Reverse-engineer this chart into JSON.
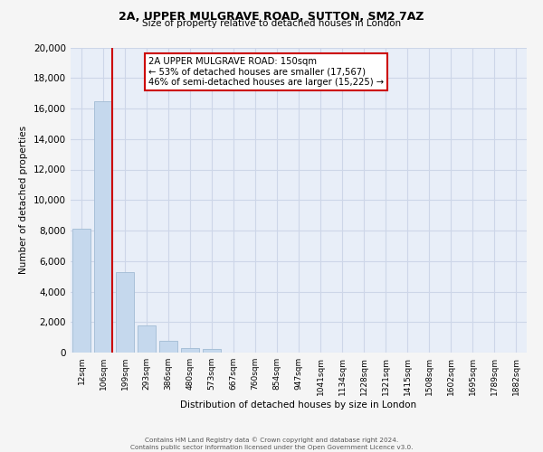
{
  "title": "2A, UPPER MULGRAVE ROAD, SUTTON, SM2 7AZ",
  "subtitle": "Size of property relative to detached houses in London",
  "xlabel": "Distribution of detached houses by size in London",
  "ylabel": "Number of detached properties",
  "bar_labels": [
    "12sqm",
    "106sqm",
    "199sqm",
    "293sqm",
    "386sqm",
    "480sqm",
    "573sqm",
    "667sqm",
    "760sqm",
    "854sqm",
    "947sqm",
    "1041sqm",
    "1134sqm",
    "1228sqm",
    "1321sqm",
    "1415sqm",
    "1508sqm",
    "1602sqm",
    "1695sqm",
    "1789sqm",
    "1882sqm"
  ],
  "bar_values": [
    8100,
    16500,
    5300,
    1800,
    780,
    280,
    230,
    0,
    0,
    0,
    0,
    0,
    0,
    0,
    0,
    0,
    0,
    0,
    0,
    0,
    0
  ],
  "bar_color": "#c5d8ed",
  "bar_edge_color": "#a8c0d8",
  "marker_color": "#cc0000",
  "annotation_text": "2A UPPER MULGRAVE ROAD: 150sqm\n← 53% of detached houses are smaller (17,567)\n46% of semi-detached houses are larger (15,225) →",
  "annotation_box_color": "#ffffff",
  "annotation_box_edge_color": "#cc0000",
  "ylim": [
    0,
    20000
  ],
  "yticks": [
    0,
    2000,
    4000,
    6000,
    8000,
    10000,
    12000,
    14000,
    16000,
    18000,
    20000
  ],
  "grid_color": "#cdd6e8",
  "background_color": "#e8eef8",
  "fig_background_color": "#f5f5f5",
  "footer_line1": "Contains HM Land Registry data © Crown copyright and database right 2024.",
  "footer_line2": "Contains public sector information licensed under the Open Government Licence v3.0."
}
